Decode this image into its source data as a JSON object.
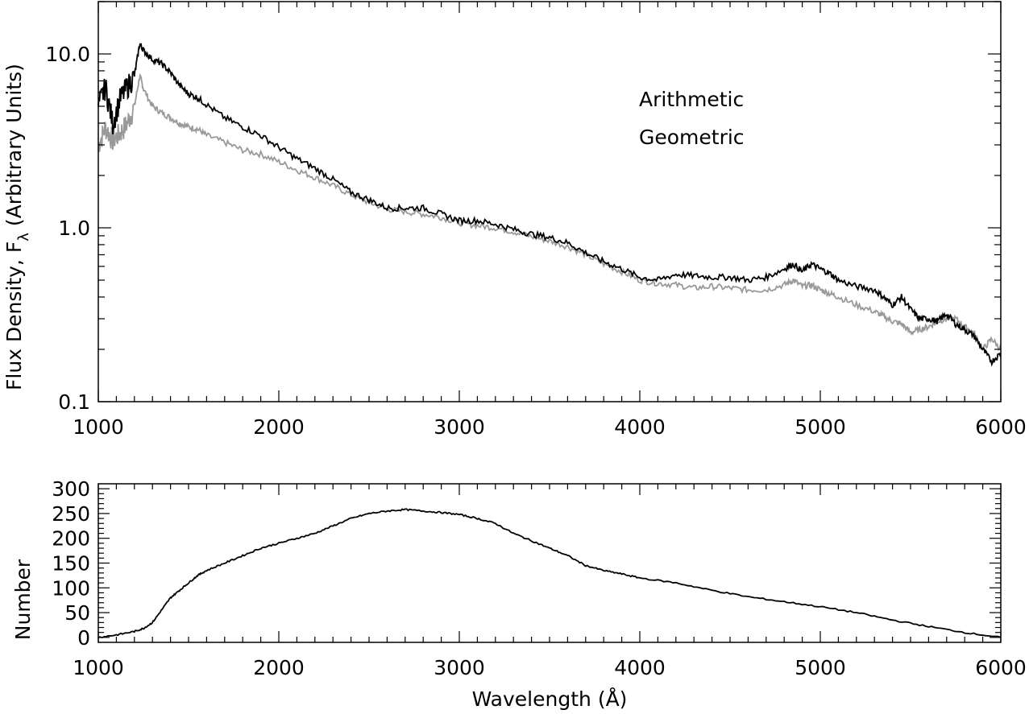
{
  "colors": {
    "background": "#ffffff",
    "arithmetic": "#000000",
    "geometric": "#999999",
    "count": "#000000"
  },
  "chart_data": [
    {
      "type": "line",
      "xlabel": "",
      "ylabel": "Flux Density, F",
      "ylabel_subscript": "λ",
      "ylabel_suffix": "(Arbitrary Units)",
      "xlim": [
        1000,
        6000
      ],
      "ylim": [
        0.1,
        20
      ],
      "yscale": "log",
      "xticks": [
        1000,
        2000,
        3000,
        4000,
        5000,
        6000
      ],
      "xtick_labels": [
        "1000",
        "2000",
        "3000",
        "4000",
        "5000",
        "6000"
      ],
      "yticks": [
        0.1,
        1,
        10
      ],
      "ytick_labels": [
        "0.1",
        "1.0",
        "10.0"
      ],
      "grid": false,
      "legend_position": "top-right",
      "series": [
        {
          "name": "Arithmetic",
          "color": "#000000",
          "x": [
            1000,
            1040,
            1080,
            1120,
            1160,
            1200,
            1230,
            1250,
            1300,
            1350,
            1400,
            1450,
            1500,
            1550,
            1600,
            1700,
            1800,
            1900,
            2000,
            2100,
            2200,
            2300,
            2400,
            2500,
            2600,
            2700,
            2800,
            2900,
            3000,
            3100,
            3200,
            3300,
            3400,
            3500,
            3600,
            3700,
            3800,
            3900,
            4000,
            4100,
            4200,
            4300,
            4400,
            4500,
            4600,
            4700,
            4800,
            4850,
            4900,
            4950,
            5000,
            5050,
            5100,
            5200,
            5300,
            5350,
            5400,
            5450,
            5500,
            5550,
            5600,
            5650,
            5700,
            5750,
            5800,
            5850,
            5900,
            5950,
            6000
          ],
          "y": [
            5.0,
            6.5,
            4.0,
            5.5,
            6.5,
            7.5,
            11.5,
            10.5,
            9.3,
            8.8,
            7.8,
            6.6,
            5.9,
            5.6,
            5.1,
            4.3,
            3.8,
            3.4,
            2.9,
            2.5,
            2.2,
            1.9,
            1.6,
            1.45,
            1.3,
            1.3,
            1.3,
            1.2,
            1.1,
            1.1,
            1.05,
            0.98,
            0.92,
            0.88,
            0.82,
            0.72,
            0.64,
            0.58,
            0.52,
            0.5,
            0.54,
            0.53,
            0.52,
            0.52,
            0.5,
            0.52,
            0.58,
            0.62,
            0.56,
            0.62,
            0.58,
            0.55,
            0.5,
            0.46,
            0.44,
            0.4,
            0.36,
            0.4,
            0.34,
            0.3,
            0.3,
            0.29,
            0.32,
            0.28,
            0.26,
            0.24,
            0.2,
            0.17,
            0.19
          ]
        },
        {
          "name": "Geometric",
          "color": "#999999",
          "x": [
            1000,
            1040,
            1080,
            1120,
            1160,
            1200,
            1230,
            1250,
            1300,
            1350,
            1400,
            1450,
            1500,
            1550,
            1600,
            1700,
            1800,
            1900,
            2000,
            2100,
            2200,
            2300,
            2400,
            2500,
            2600,
            2700,
            2800,
            2900,
            3000,
            3100,
            3200,
            3300,
            3400,
            3500,
            3600,
            3700,
            3800,
            3900,
            4000,
            4100,
            4200,
            4300,
            4400,
            4500,
            4600,
            4700,
            4800,
            4850,
            4900,
            4950,
            5000,
            5050,
            5100,
            5200,
            5300,
            5350,
            5400,
            5450,
            5500,
            5550,
            5600,
            5650,
            5700,
            5750,
            5800,
            5850,
            5900,
            5950,
            6000
          ],
          "y": [
            3.0,
            3.8,
            3.2,
            3.5,
            4.0,
            5.0,
            7.5,
            6.3,
            5.0,
            4.6,
            4.3,
            4.0,
            3.8,
            3.7,
            3.4,
            3.1,
            2.8,
            2.65,
            2.4,
            2.15,
            1.95,
            1.75,
            1.55,
            1.4,
            1.28,
            1.24,
            1.2,
            1.15,
            1.07,
            1.03,
            1.0,
            0.95,
            0.89,
            0.84,
            0.78,
            0.7,
            0.62,
            0.56,
            0.5,
            0.48,
            0.47,
            0.45,
            0.46,
            0.45,
            0.44,
            0.44,
            0.47,
            0.5,
            0.46,
            0.47,
            0.44,
            0.42,
            0.4,
            0.36,
            0.33,
            0.31,
            0.29,
            0.28,
            0.25,
            0.26,
            0.27,
            0.29,
            0.3,
            0.3,
            0.27,
            0.25,
            0.2,
            0.23,
            0.2
          ]
        }
      ]
    },
    {
      "type": "line",
      "xlabel": "Wavelength (Å)",
      "ylabel": "Number",
      "xlim": [
        1000,
        6000
      ],
      "ylim": [
        -10,
        310
      ],
      "xticks": [
        1000,
        2000,
        3000,
        4000,
        5000,
        6000
      ],
      "xtick_labels": [
        "1000",
        "2000",
        "3000",
        "4000",
        "5000",
        "6000"
      ],
      "yticks": [
        0,
        50,
        100,
        150,
        200,
        250,
        300
      ],
      "ytick_labels": [
        "0",
        "50",
        "100",
        "150",
        "200",
        "250",
        "300"
      ],
      "grid": false,
      "series": [
        {
          "color": "#000000",
          "x": [
            1000,
            1100,
            1200,
            1250,
            1300,
            1350,
            1400,
            1450,
            1500,
            1550,
            1600,
            1700,
            1800,
            1900,
            2000,
            2100,
            2200,
            2300,
            2400,
            2500,
            2600,
            2700,
            2800,
            2900,
            3000,
            3100,
            3200,
            3300,
            3400,
            3500,
            3600,
            3700,
            3800,
            3900,
            4000,
            4200,
            4400,
            4600,
            4800,
            5000,
            5200,
            5400,
            5600,
            5800,
            6000
          ],
          "y": [
            0,
            5,
            12,
            18,
            30,
            55,
            80,
            95,
            110,
            125,
            135,
            150,
            165,
            180,
            190,
            200,
            210,
            225,
            240,
            250,
            255,
            258,
            255,
            252,
            248,
            240,
            230,
            210,
            195,
            180,
            165,
            145,
            135,
            128,
            120,
            110,
            95,
            82,
            72,
            62,
            50,
            35,
            22,
            10,
            0
          ]
        }
      ]
    }
  ]
}
